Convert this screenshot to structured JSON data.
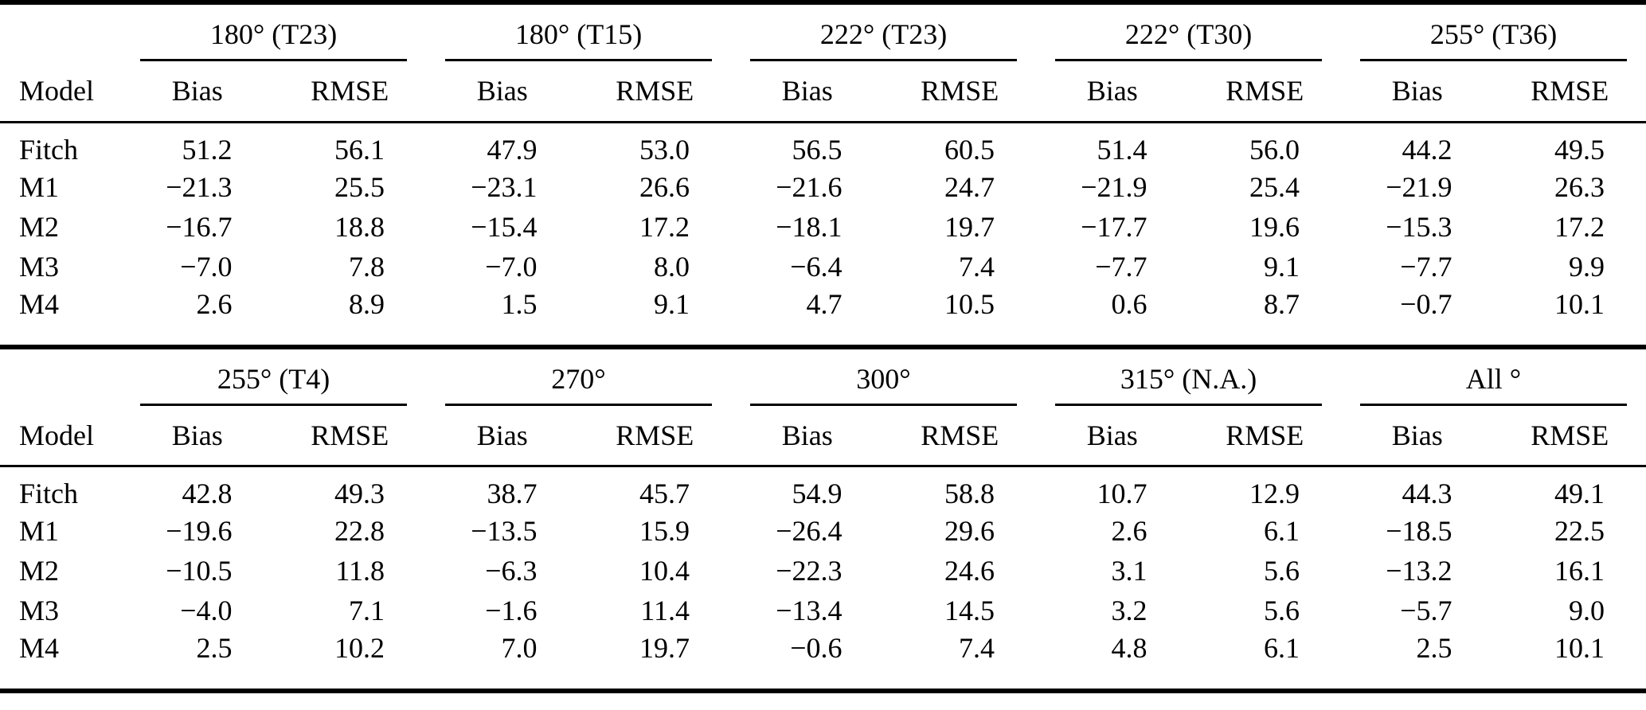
{
  "figure": {
    "model_column_header": "Model",
    "sub_headers": [
      "Bias",
      "RMSE"
    ],
    "tables": [
      {
        "groups": [
          "180° (T23)",
          "180° (T15)",
          "222° (T23)",
          "222° (T30)",
          "255° (T36)"
        ],
        "rows": [
          {
            "model": "Fitch",
            "values": [
              "51.2",
              "56.1",
              "47.9",
              "53.0",
              "56.5",
              "60.5",
              "51.4",
              "56.0",
              "44.2",
              "49.5"
            ]
          },
          {
            "model": "M1",
            "values": [
              "−21.3",
              "25.5",
              "−23.1",
              "26.6",
              "−21.6",
              "24.7",
              "−21.9",
              "25.4",
              "−21.9",
              "26.3"
            ]
          },
          {
            "model": "M2",
            "values": [
              "−16.7",
              "18.8",
              "−15.4",
              "17.2",
              "−18.1",
              "19.7",
              "−17.7",
              "19.6",
              "−15.3",
              "17.2"
            ]
          },
          {
            "model": "M3",
            "values": [
              "−7.0",
              "7.8",
              "−7.0",
              "8.0",
              "−6.4",
              "7.4",
              "−7.7",
              "9.1",
              "−7.7",
              "9.9"
            ]
          },
          {
            "model": "M4",
            "values": [
              "2.6",
              "8.9",
              "1.5",
              "9.1",
              "4.7",
              "10.5",
              "0.6",
              "8.7",
              "−0.7",
              "10.1"
            ]
          }
        ]
      },
      {
        "groups": [
          "255° (T4)",
          "270°",
          "300°",
          "315° (N.A.)",
          "All °"
        ],
        "rows": [
          {
            "model": "Fitch",
            "values": [
              "42.8",
              "49.3",
              "38.7",
              "45.7",
              "54.9",
              "58.8",
              "10.7",
              "12.9",
              "44.3",
              "49.1"
            ]
          },
          {
            "model": "M1",
            "values": [
              "−19.6",
              "22.8",
              "−13.5",
              "15.9",
              "−26.4",
              "29.6",
              "2.6",
              "6.1",
              "−18.5",
              "22.5"
            ]
          },
          {
            "model": "M2",
            "values": [
              "−10.5",
              "11.8",
              "−6.3",
              "10.4",
              "−22.3",
              "24.6",
              "3.1",
              "5.6",
              "−13.2",
              "16.1"
            ]
          },
          {
            "model": "M3",
            "values": [
              "−4.0",
              "7.1",
              "−1.6",
              "11.4",
              "−13.4",
              "14.5",
              "3.2",
              "5.6",
              "−5.7",
              "9.0"
            ]
          },
          {
            "model": "M4",
            "values": [
              "2.5",
              "10.2",
              "7.0",
              "19.7",
              "−0.6",
              "7.4",
              "4.8",
              "6.1",
              "2.5",
              "10.1"
            ]
          }
        ]
      }
    ]
  }
}
